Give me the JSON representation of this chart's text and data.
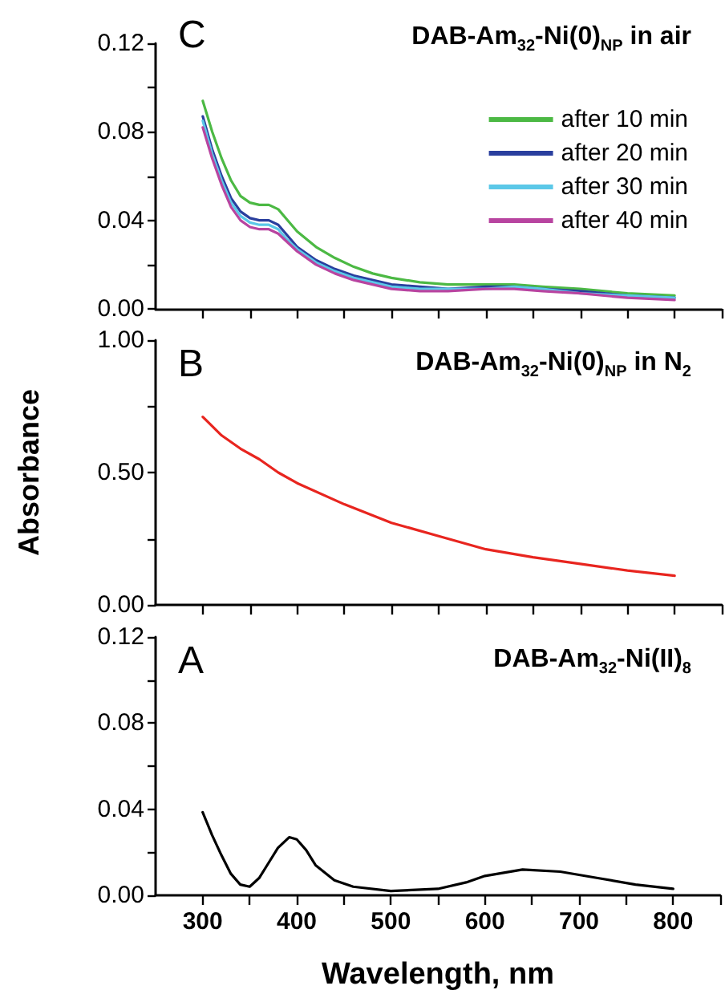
{
  "chart_data": [
    {
      "type": "line",
      "title": "DAB-Am$_{32}$-Ni(0)$_{NP}$ in air",
      "annotations": [
        "C"
      ],
      "legend": "top right",
      "grid": false,
      "marker": "none",
      "line_style": "solid",
      "tick_labels": "y",
      "x": [
        300,
        310,
        320,
        330,
        340,
        350,
        360,
        370,
        380,
        390,
        400,
        420,
        440,
        460,
        480,
        500,
        530,
        560,
        600,
        630,
        660,
        700,
        750,
        800
      ],
      "xlim": [
        250,
        850
      ],
      "xticks": [
        300,
        {
          "value": 350,
          "label": null
        },
        400,
        {
          "value": 450,
          "label": null
        },
        500,
        {
          "value": 550,
          "label": null
        },
        600,
        {
          "value": 650,
          "label": null
        },
        700,
        {
          "value": 750,
          "label": null
        },
        800,
        {
          "value": 850,
          "label": null
        }
      ],
      "ylim": [
        0,
        0.12
      ],
      "yticks": [
        {
          "value": 0,
          "label": "0.00"
        },
        {
          "value": 0.02,
          "label": null
        },
        {
          "value": 0.04,
          "label": "0.04"
        },
        {
          "value": 0.06,
          "label": null
        },
        {
          "value": 0.08,
          "label": "0.08"
        },
        {
          "value": 0.1,
          "label": null
        },
        {
          "value": 0.12,
          "label": "0.12"
        }
      ],
      "series": [
        {
          "name": "after 10 min",
          "color": "#4cb944",
          "values": [
            0.094,
            0.08,
            0.068,
            0.058,
            0.051,
            0.048,
            0.047,
            0.047,
            0.045,
            0.04,
            0.035,
            0.028,
            0.023,
            0.019,
            0.016,
            0.014,
            0.012,
            0.011,
            0.011,
            0.011,
            0.01,
            0.009,
            0.007,
            0.006
          ]
        },
        {
          "name": "after 20 min",
          "color": "#2a3f9e",
          "values": [
            0.087,
            0.072,
            0.06,
            0.05,
            0.044,
            0.041,
            0.04,
            0.04,
            0.038,
            0.033,
            0.028,
            0.022,
            0.018,
            0.015,
            0.013,
            0.011,
            0.01,
            0.009,
            0.01,
            0.01,
            0.009,
            0.008,
            0.006,
            0.005
          ]
        },
        {
          "name": "after 30 min",
          "color": "#5bc8e8",
          "values": [
            0.085,
            0.07,
            0.058,
            0.048,
            0.042,
            0.039,
            0.038,
            0.038,
            0.036,
            0.031,
            0.027,
            0.021,
            0.017,
            0.014,
            0.012,
            0.01,
            0.009,
            0.009,
            0.009,
            0.01,
            0.009,
            0.007,
            0.006,
            0.005
          ]
        },
        {
          "name": "after 40 min",
          "color": "#b844a0",
          "values": [
            0.082,
            0.068,
            0.056,
            0.046,
            0.04,
            0.037,
            0.036,
            0.036,
            0.034,
            0.03,
            0.026,
            0.02,
            0.016,
            0.013,
            0.011,
            0.009,
            0.008,
            0.008,
            0.009,
            0.009,
            0.008,
            0.007,
            0.005,
            0.004
          ]
        }
      ]
    },
    {
      "type": "line",
      "title": "DAB-Am$_{32}$-Ni(0)$_{NP}$ in N$_{2}$",
      "annotations": [
        "B"
      ],
      "ylabel": "Absorbance",
      "grid": false,
      "marker": "none",
      "line_style": "solid",
      "tick_labels": "y",
      "x": [
        300,
        320,
        340,
        360,
        380,
        400,
        450,
        500,
        550,
        600,
        650,
        700,
        750,
        800
      ],
      "xlim": [
        250,
        850
      ],
      "xticks": [
        300,
        {
          "value": 350,
          "label": null
        },
        400,
        {
          "value": 450,
          "label": null
        },
        500,
        {
          "value": 550,
          "label": null
        },
        600,
        {
          "value": 650,
          "label": null
        },
        700,
        {
          "value": 750,
          "label": null
        },
        800,
        {
          "value": 850,
          "label": null
        }
      ],
      "ylim": [
        0,
        1
      ],
      "yticks": [
        {
          "value": 0,
          "label": "0.00"
        },
        {
          "value": 0.25,
          "label": null
        },
        {
          "value": 0.5,
          "label": "0.50"
        },
        {
          "value": 0.75,
          "label": null
        },
        {
          "value": 1,
          "label": "1.00"
        }
      ],
      "series": [
        {
          "color": "#e8251f",
          "values": [
            0.71,
            0.64,
            0.59,
            0.55,
            0.5,
            0.46,
            0.38,
            0.31,
            0.26,
            0.21,
            0.18,
            0.155,
            0.13,
            0.11
          ]
        }
      ]
    },
    {
      "type": "line",
      "title": "DAB-Am$_{32}$-Ni(II)$_{8}$",
      "annotations": [
        "A"
      ],
      "xlabel": "Wavelength, nm",
      "grid": false,
      "marker": "none",
      "line_style": "solid",
      "x": [
        300,
        310,
        320,
        330,
        340,
        350,
        360,
        370,
        380,
        392,
        400,
        410,
        420,
        440,
        460,
        500,
        550,
        580,
        600,
        640,
        680,
        720,
        760,
        800
      ],
      "xlim": [
        250,
        850
      ],
      "xticks": [
        300,
        {
          "value": 350,
          "label": null
        },
        400,
        {
          "value": 450,
          "label": null
        },
        500,
        {
          "value": 550,
          "label": null
        },
        600,
        {
          "value": 650,
          "label": null
        },
        700,
        {
          "value": 750,
          "label": null
        },
        800,
        {
          "value": 850,
          "label": null
        }
      ],
      "ylim": [
        0,
        0.12
      ],
      "yticks": [
        {
          "value": 0,
          "label": "0.00"
        },
        {
          "value": 0.02,
          "label": null
        },
        {
          "value": 0.04,
          "label": "0.04"
        },
        {
          "value": 0.06,
          "label": null
        },
        {
          "value": 0.08,
          "label": "0.08"
        },
        {
          "value": 0.1,
          "label": null
        },
        {
          "value": 0.12,
          "label": "0.12"
        }
      ],
      "series": [
        {
          "color": "#000000",
          "values": [
            0.0386,
            0.028,
            0.0186,
            0.01,
            0.005,
            0.004,
            0.008,
            0.015,
            0.022,
            0.027,
            0.026,
            0.021,
            0.014,
            0.007,
            0.004,
            0.002,
            0.003,
            0.006,
            0.009,
            0.012,
            0.011,
            0.008,
            0.005,
            0.003
          ]
        }
      ]
    }
  ]
}
